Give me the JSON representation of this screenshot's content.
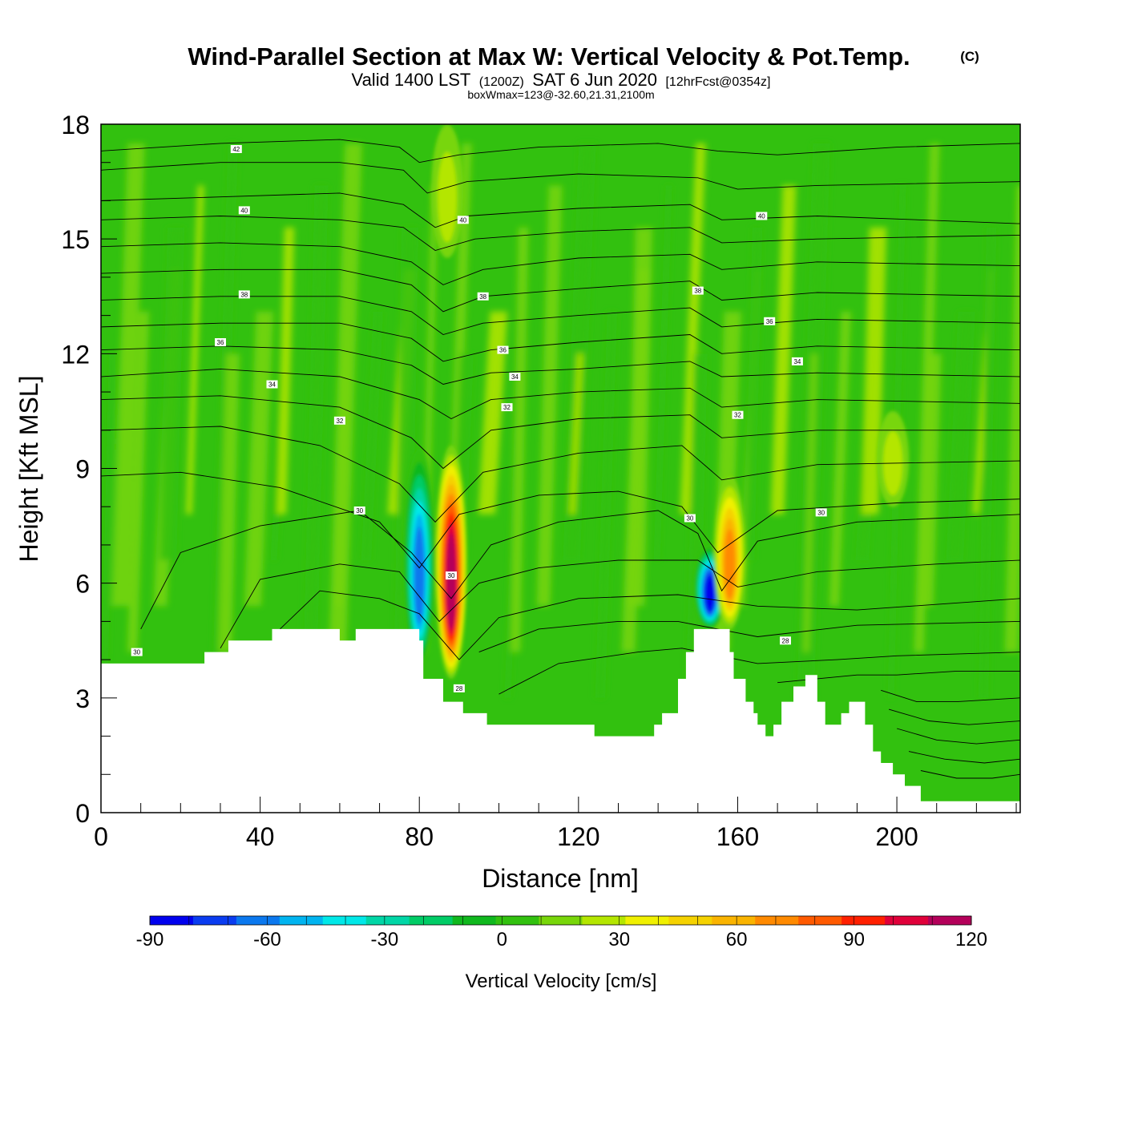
{
  "title": {
    "main": "Wind-Parallel Section at Max W: Vertical Velocity & Pot.Temp.",
    "copyright": "(C)",
    "valid_prefix": "Valid 1400 LST",
    "valid_utc": "(1200Z)",
    "valid_date": "SAT 6 Jun 2020",
    "forecast": "[12hrFcst@0354z]",
    "boxwmax": "boxWmax=123@-32.60,21.31,2100m"
  },
  "chart_data": {
    "type": "heatmap",
    "xlabel": "Distance [nm]",
    "ylabel": "Height [Kft MSL]",
    "xlim": [
      0,
      231
    ],
    "ylim": [
      0,
      18
    ],
    "x_ticks": [
      0,
      40,
      80,
      120,
      160,
      200
    ],
    "x_tick_labels": [
      "0",
      "40",
      "80",
      "120",
      "160",
      "200"
    ],
    "y_ticks": [
      0,
      3,
      6,
      9,
      12,
      15,
      18
    ],
    "y_tick_labels": [
      "0",
      "3",
      "6",
      "9",
      "12",
      "15",
      "18"
    ],
    "terrain": {
      "x": [
        0,
        26,
        26,
        32,
        32,
        43,
        43,
        60,
        60,
        64,
        64,
        80,
        80,
        81,
        81,
        86,
        86,
        91,
        91,
        97,
        97,
        119,
        119,
        124,
        124,
        135,
        135,
        139,
        139,
        141,
        141,
        145,
        145,
        147,
        147,
        149,
        149,
        150,
        150,
        158,
        158,
        159,
        159,
        162,
        162,
        164,
        164,
        165,
        165,
        167,
        167,
        169,
        169,
        171,
        171,
        174,
        174,
        177,
        177,
        180,
        180,
        182,
        182,
        186,
        186,
        188,
        188,
        190,
        190,
        192,
        192,
        194,
        194,
        196,
        196,
        199,
        199,
        202,
        202,
        203,
        203,
        206,
        206,
        209,
        209,
        212,
        212,
        216,
        216,
        231
      ],
      "y": [
        3.9,
        3.9,
        4.2,
        4.2,
        4.5,
        4.5,
        4.8,
        4.8,
        4.5,
        4.5,
        4.8,
        4.8,
        4.5,
        4.5,
        3.5,
        3.5,
        2.9,
        2.9,
        2.6,
        2.6,
        2.3,
        2.3,
        2.3,
        2.3,
        2.0,
        2.0,
        2.0,
        2.0,
        2.3,
        2.3,
        2.6,
        2.6,
        3.5,
        3.5,
        4.2,
        4.2,
        4.8,
        4.8,
        4.8,
        4.8,
        4.2,
        4.2,
        3.5,
        3.5,
        2.9,
        2.9,
        2.6,
        2.6,
        2.3,
        2.3,
        2.0,
        2.0,
        2.3,
        2.3,
        2.9,
        2.9,
        3.3,
        3.3,
        3.6,
        3.6,
        2.9,
        2.9,
        2.3,
        2.3,
        2.6,
        2.6,
        2.9,
        2.9,
        2.9,
        2.9,
        2.3,
        2.3,
        1.6,
        1.6,
        1.3,
        1.3,
        1.0,
        1.0,
        0.7,
        0.7,
        0.7,
        0.7,
        0.3,
        0.3,
        0.3,
        0.3,
        0.3,
        0.3,
        0.3,
        0.3
      ]
    },
    "w_features": [
      {
        "x": 80,
        "y_bottom": 3.8,
        "y_top": 9.5,
        "peak_w": -65,
        "sign": "down"
      },
      {
        "x": 88,
        "y_bottom": 3.5,
        "y_top": 9.6,
        "peak_w": 100,
        "sign": "up"
      },
      {
        "x": 153,
        "y_bottom": 4.8,
        "y_top": 7.0,
        "peak_w": -90,
        "sign": "down"
      },
      {
        "x": 158,
        "y_bottom": 4.8,
        "y_top": 8.8,
        "peak_w": 60,
        "sign": "up"
      },
      {
        "x": 87,
        "y_bottom": 14.5,
        "y_top": 18.0,
        "peak_w": 20,
        "sign": "up"
      },
      {
        "x": 199,
        "y_bottom": 8.0,
        "y_top": 10.5,
        "peak_w": 20,
        "sign": "up"
      }
    ],
    "theta_contours": {
      "unit": "C",
      "interval": 1,
      "labels": [
        {
          "value": "42",
          "x": 34,
          "y": 17.35
        },
        {
          "value": "40",
          "x": 36,
          "y": 15.75
        },
        {
          "value": "40",
          "x": 91,
          "y": 15.5
        },
        {
          "value": "40",
          "x": 166,
          "y": 15.6
        },
        {
          "value": "38",
          "x": 36,
          "y": 13.55
        },
        {
          "value": "38",
          "x": 96,
          "y": 13.5
        },
        {
          "value": "38",
          "x": 150,
          "y": 13.65
        },
        {
          "value": "36",
          "x": 30,
          "y": 12.3
        },
        {
          "value": "36",
          "x": 101,
          "y": 12.1
        },
        {
          "value": "36",
          "x": 168,
          "y": 12.85
        },
        {
          "value": "34",
          "x": 43,
          "y": 11.2
        },
        {
          "value": "34",
          "x": 104,
          "y": 11.4
        },
        {
          "value": "34",
          "x": 175,
          "y": 11.8
        },
        {
          "value": "32",
          "x": 60,
          "y": 10.25
        },
        {
          "value": "32",
          "x": 102,
          "y": 10.6
        },
        {
          "value": "32",
          "x": 160,
          "y": 10.4
        },
        {
          "value": "30",
          "x": 65,
          "y": 7.9
        },
        {
          "value": "30",
          "x": 148,
          "y": 7.7
        },
        {
          "value": "30",
          "x": 181,
          "y": 7.85
        },
        {
          "value": "30",
          "x": 88,
          "y": 6.2
        },
        {
          "value": "30",
          "x": 9,
          "y": 4.2
        },
        {
          "value": "28",
          "x": 90,
          "y": 3.25
        },
        {
          "value": "28",
          "x": 172,
          "y": 4.5
        }
      ],
      "lines": [
        {
          "x": [
            0,
            30,
            60,
            75,
            80,
            90,
            110,
            140,
            155,
            170,
            200,
            231
          ],
          "y": [
            17.3,
            17.5,
            17.6,
            17.4,
            17.0,
            17.2,
            17.4,
            17.5,
            17.3,
            17.2,
            17.4,
            17.5
          ]
        },
        {
          "x": [
            0,
            30,
            60,
            76,
            82,
            92,
            120,
            150,
            160,
            180,
            231
          ],
          "y": [
            16.8,
            17.0,
            17.0,
            16.8,
            16.2,
            16.5,
            16.7,
            16.6,
            16.3,
            16.4,
            16.5
          ]
        },
        {
          "x": [
            0,
            30,
            60,
            76,
            84,
            92,
            120,
            148,
            156,
            180,
            231
          ],
          "y": [
            16.0,
            16.1,
            16.2,
            15.9,
            15.3,
            15.6,
            15.8,
            15.9,
            15.5,
            15.6,
            15.4
          ]
        },
        {
          "x": [
            0,
            30,
            60,
            76,
            84,
            94,
            120,
            148,
            156,
            180,
            231
          ],
          "y": [
            15.5,
            15.6,
            15.5,
            15.3,
            14.7,
            15.0,
            15.2,
            15.3,
            14.9,
            15.0,
            15.1
          ]
        },
        {
          "x": [
            0,
            30,
            60,
            78,
            86,
            96,
            120,
            148,
            156,
            180,
            231
          ],
          "y": [
            14.8,
            14.9,
            14.8,
            14.4,
            13.8,
            14.2,
            14.5,
            14.6,
            14.2,
            14.4,
            14.3
          ]
        },
        {
          "x": [
            0,
            30,
            60,
            78,
            86,
            96,
            120,
            148,
            156,
            180,
            231
          ],
          "y": [
            14.1,
            14.2,
            14.2,
            13.8,
            13.1,
            13.5,
            13.7,
            13.9,
            13.4,
            13.6,
            13.5
          ]
        },
        {
          "x": [
            0,
            30,
            60,
            78,
            86,
            96,
            120,
            148,
            156,
            180,
            231
          ],
          "y": [
            13.4,
            13.5,
            13.5,
            13.1,
            12.5,
            12.8,
            13.0,
            13.2,
            12.7,
            12.9,
            12.8
          ]
        },
        {
          "x": [
            0,
            30,
            60,
            78,
            86,
            98,
            120,
            148,
            156,
            180,
            231
          ],
          "y": [
            12.7,
            12.8,
            12.8,
            12.4,
            11.8,
            12.1,
            12.3,
            12.5,
            12.0,
            12.2,
            12.1
          ]
        },
        {
          "x": [
            0,
            30,
            60,
            78,
            86,
            98,
            120,
            148,
            156,
            180,
            231
          ],
          "y": [
            12.1,
            12.2,
            12.1,
            11.7,
            11.2,
            11.5,
            11.6,
            11.8,
            11.4,
            11.5,
            11.4
          ]
        },
        {
          "x": [
            0,
            30,
            60,
            80,
            88,
            98,
            120,
            148,
            156,
            180,
            231
          ],
          "y": [
            11.4,
            11.6,
            11.4,
            10.8,
            10.3,
            10.8,
            11.0,
            11.1,
            10.6,
            10.8,
            10.7
          ]
        },
        {
          "x": [
            0,
            30,
            60,
            78,
            86,
            98,
            120,
            148,
            156,
            180,
            231
          ],
          "y": [
            10.8,
            10.9,
            10.6,
            9.8,
            9.0,
            10.0,
            10.3,
            10.4,
            9.8,
            10.0,
            10.0
          ]
        },
        {
          "x": [
            0,
            30,
            55,
            75,
            84,
            96,
            120,
            146,
            156,
            180,
            231
          ],
          "y": [
            10.0,
            10.1,
            9.6,
            8.6,
            7.6,
            8.9,
            9.4,
            9.6,
            8.7,
            9.1,
            9.2
          ]
        },
        {
          "x": [
            0,
            20,
            45,
            70,
            80,
            90,
            110,
            130,
            146,
            155,
            170,
            200,
            231
          ],
          "y": [
            8.8,
            8.9,
            8.5,
            7.6,
            6.4,
            7.8,
            8.3,
            8.4,
            8.0,
            6.8,
            7.9,
            8.1,
            8.2
          ]
        },
        {
          "x": [
            10,
            20,
            40,
            65,
            78,
            88,
            98,
            115,
            140,
            150,
            156,
            165,
            190,
            231
          ],
          "y": [
            4.8,
            6.8,
            7.5,
            7.9,
            6.8,
            5.6,
            7.0,
            7.6,
            7.9,
            7.3,
            5.8,
            7.1,
            7.6,
            7.8
          ]
        },
        {
          "x": [
            30,
            40,
            60,
            75,
            85,
            95,
            110,
            130,
            150,
            160,
            180,
            210,
            231
          ],
          "y": [
            4.3,
            6.1,
            6.5,
            6.3,
            5.0,
            6.0,
            6.4,
            6.6,
            6.6,
            5.9,
            6.3,
            6.5,
            6.6
          ]
        },
        {
          "x": [
            45,
            55,
            70,
            80,
            90,
            100,
            120,
            145,
            165,
            190,
            231
          ],
          "y": [
            4.8,
            5.8,
            5.6,
            5.2,
            4.0,
            5.1,
            5.6,
            5.7,
            5.4,
            5.3,
            5.6
          ]
        },
        {
          "x": [
            95,
            110,
            130,
            145,
            165,
            190,
            231
          ],
          "y": [
            4.2,
            4.8,
            5.0,
            5.0,
            4.6,
            4.9,
            5.0
          ]
        },
        {
          "x": [
            100,
            115,
            135,
            146,
            165,
            185,
            200,
            231
          ],
          "y": [
            3.1,
            3.9,
            4.2,
            4.3,
            3.9,
            4.0,
            4.1,
            4.2
          ]
        },
        {
          "x": [
            170,
            190,
            200,
            215,
            231
          ],
          "y": [
            3.4,
            3.6,
            3.6,
            3.7,
            3.7
          ]
        },
        {
          "x": [
            196,
            205,
            215,
            231
          ],
          "y": [
            3.2,
            2.9,
            2.9,
            3.0
          ]
        },
        {
          "x": [
            198,
            208,
            218,
            231
          ],
          "y": [
            2.7,
            2.4,
            2.3,
            2.4
          ]
        },
        {
          "x": [
            200,
            210,
            220,
            231
          ],
          "y": [
            2.2,
            1.9,
            1.8,
            1.9
          ]
        },
        {
          "x": [
            203,
            212,
            222,
            231
          ],
          "y": [
            1.6,
            1.4,
            1.3,
            1.4
          ]
        },
        {
          "x": [
            206,
            215,
            224,
            231
          ],
          "y": [
            1.1,
            0.9,
            0.9,
            1.0
          ]
        }
      ]
    },
    "colorbar": {
      "title": "Vertical Velocity [cm/s]",
      "min": -90,
      "max": 120,
      "step": 10,
      "tick_values": [
        -90,
        -60,
        -30,
        0,
        30,
        60,
        90,
        120
      ],
      "tick_labels": [
        "-90",
        "-60",
        "-30",
        "0",
        "30",
        "60",
        "90",
        "120"
      ],
      "colors": [
        "#0000ee",
        "#0a3cf0",
        "#0b78ee",
        "#00b4f0",
        "#00e8e8",
        "#00d6a6",
        "#00cc66",
        "#10b81e",
        "#32c10f",
        "#78d60a",
        "#b4e600",
        "#f0f000",
        "#f5d200",
        "#fab400",
        "#ff8a00",
        "#ff5a00",
        "#ff2000",
        "#e0003a",
        "#b4005a"
      ]
    }
  }
}
